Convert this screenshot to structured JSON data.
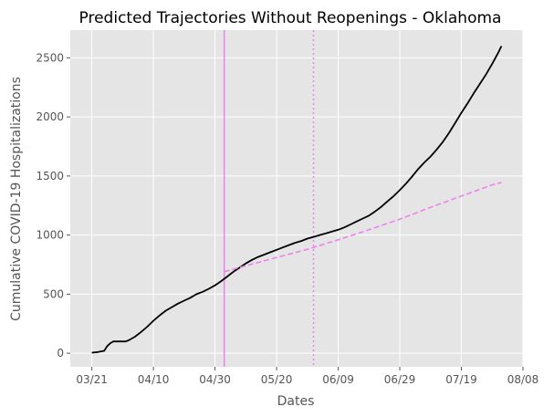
{
  "chart_data": {
    "type": "line",
    "title": "Predicted Trajectories Without Reopenings - Oklahoma",
    "xlabel": "Dates",
    "ylabel": "Cumulative COVID-19 Hospitalizations",
    "x_ticks": [
      "03/21",
      "04/10",
      "04/30",
      "05/20",
      "06/09",
      "06/29",
      "07/19",
      "08/08"
    ],
    "y_ticks": [
      0,
      500,
      1000,
      1500,
      2000,
      2500
    ],
    "xlim": [
      "2020-03-14",
      "2020-08-08"
    ],
    "ylim": [
      -115,
      2735
    ],
    "grid": true,
    "colors": {
      "background": "#e5e5e5",
      "grid": "#ffffff",
      "observed": "#000000",
      "prediction": "#ee82ee"
    },
    "vertical_lines": [
      {
        "x": "2020-05-03",
        "style": "solid",
        "color": "#ee82ee"
      },
      {
        "x": "2020-06-01",
        "style": "dotted",
        "color": "#ee82ee"
      }
    ],
    "series": [
      {
        "style": "solid",
        "color": "#000000",
        "points": [
          [
            "2020-03-21",
            5
          ],
          [
            "2020-03-23",
            10
          ],
          [
            "2020-03-25",
            20
          ],
          [
            "2020-03-26",
            60
          ],
          [
            "2020-03-27",
            85
          ],
          [
            "2020-03-28",
            100
          ],
          [
            "2020-03-30",
            100
          ],
          [
            "2020-04-01",
            100
          ],
          [
            "2020-04-02",
            110
          ],
          [
            "2020-04-04",
            140
          ],
          [
            "2020-04-06",
            180
          ],
          [
            "2020-04-08",
            225
          ],
          [
            "2020-04-10",
            275
          ],
          [
            "2020-04-12",
            320
          ],
          [
            "2020-04-14",
            360
          ],
          [
            "2020-04-16",
            390
          ],
          [
            "2020-04-18",
            420
          ],
          [
            "2020-04-20",
            445
          ],
          [
            "2020-04-22",
            470
          ],
          [
            "2020-04-24",
            500
          ],
          [
            "2020-04-26",
            520
          ],
          [
            "2020-04-28",
            545
          ],
          [
            "2020-04-30",
            575
          ],
          [
            "2020-05-02",
            610
          ],
          [
            "2020-05-04",
            650
          ],
          [
            "2020-05-06",
            690
          ],
          [
            "2020-05-08",
            725
          ],
          [
            "2020-05-10",
            760
          ],
          [
            "2020-05-12",
            790
          ],
          [
            "2020-05-14",
            815
          ],
          [
            "2020-05-16",
            835
          ],
          [
            "2020-05-18",
            855
          ],
          [
            "2020-05-20",
            875
          ],
          [
            "2020-05-22",
            895
          ],
          [
            "2020-05-24",
            915
          ],
          [
            "2020-05-26",
            935
          ],
          [
            "2020-05-28",
            950
          ],
          [
            "2020-05-30",
            970
          ],
          [
            "2020-06-01",
            985
          ],
          [
            "2020-06-03",
            1000
          ],
          [
            "2020-06-05",
            1015
          ],
          [
            "2020-06-07",
            1030
          ],
          [
            "2020-06-09",
            1045
          ],
          [
            "2020-06-11",
            1065
          ],
          [
            "2020-06-13",
            1090
          ],
          [
            "2020-06-15",
            1115
          ],
          [
            "2020-06-17",
            1140
          ],
          [
            "2020-06-19",
            1165
          ],
          [
            "2020-06-21",
            1200
          ],
          [
            "2020-06-23",
            1240
          ],
          [
            "2020-06-25",
            1285
          ],
          [
            "2020-06-27",
            1330
          ],
          [
            "2020-06-29",
            1380
          ],
          [
            "2020-07-01",
            1435
          ],
          [
            "2020-07-03",
            1495
          ],
          [
            "2020-07-05",
            1560
          ],
          [
            "2020-07-07",
            1615
          ],
          [
            "2020-07-09",
            1665
          ],
          [
            "2020-07-11",
            1725
          ],
          [
            "2020-07-13",
            1790
          ],
          [
            "2020-07-15",
            1865
          ],
          [
            "2020-07-17",
            1950
          ],
          [
            "2020-07-19",
            2035
          ],
          [
            "2020-07-21",
            2115
          ],
          [
            "2020-07-23",
            2200
          ],
          [
            "2020-07-25",
            2280
          ],
          [
            "2020-07-27",
            2360
          ],
          [
            "2020-07-29",
            2450
          ],
          [
            "2020-07-31",
            2545
          ],
          [
            "2020-08-01",
            2600
          ]
        ]
      },
      {
        "style": "dashed",
        "color": "#ee82ee",
        "points": [
          [
            "2020-05-03",
            690
          ],
          [
            "2020-05-10",
            740
          ],
          [
            "2020-05-20",
            810
          ],
          [
            "2020-05-30",
            880
          ],
          [
            "2020-06-09",
            960
          ],
          [
            "2020-06-19",
            1045
          ],
          [
            "2020-06-29",
            1135
          ],
          [
            "2020-07-09",
            1235
          ],
          [
            "2020-07-19",
            1330
          ],
          [
            "2020-07-29",
            1425
          ],
          [
            "2020-08-01",
            1445
          ]
        ]
      }
    ]
  }
}
